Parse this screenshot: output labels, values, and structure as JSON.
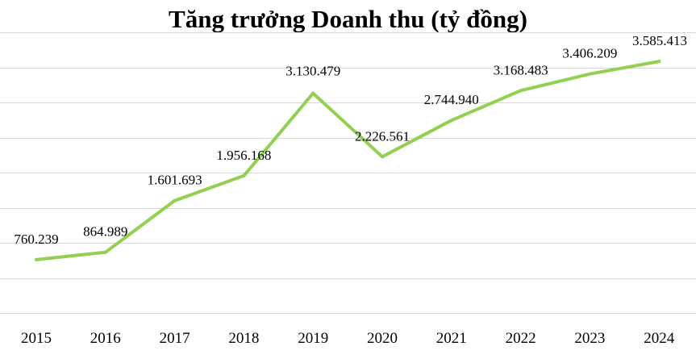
{
  "chart_data": {
    "type": "line",
    "title": "Tăng trưởng Doanh thu (tỷ đồng)",
    "xlabel": "",
    "ylabel": "",
    "categories": [
      "2015",
      "2016",
      "2017",
      "2018",
      "2019",
      "2020",
      "2021",
      "2022",
      "2023",
      "2024"
    ],
    "series": [
      {
        "values": [
          760239,
          864989,
          1601693,
          1956168,
          3130479,
          2226561,
          2744940,
          3168483,
          3406209,
          3585413
        ],
        "labels": [
          "760.239",
          "864.989",
          "1.601.693",
          "1.956.168",
          "3.130.479",
          "2.226.561",
          "2.744.940",
          "3.168.483",
          "3.406.209",
          "3.585.413"
        ],
        "color": "#92d050"
      }
    ],
    "ylim": [
      0,
      4000000
    ],
    "grid": true,
    "gridColor": "#d9d9d9",
    "legend": "none"
  }
}
